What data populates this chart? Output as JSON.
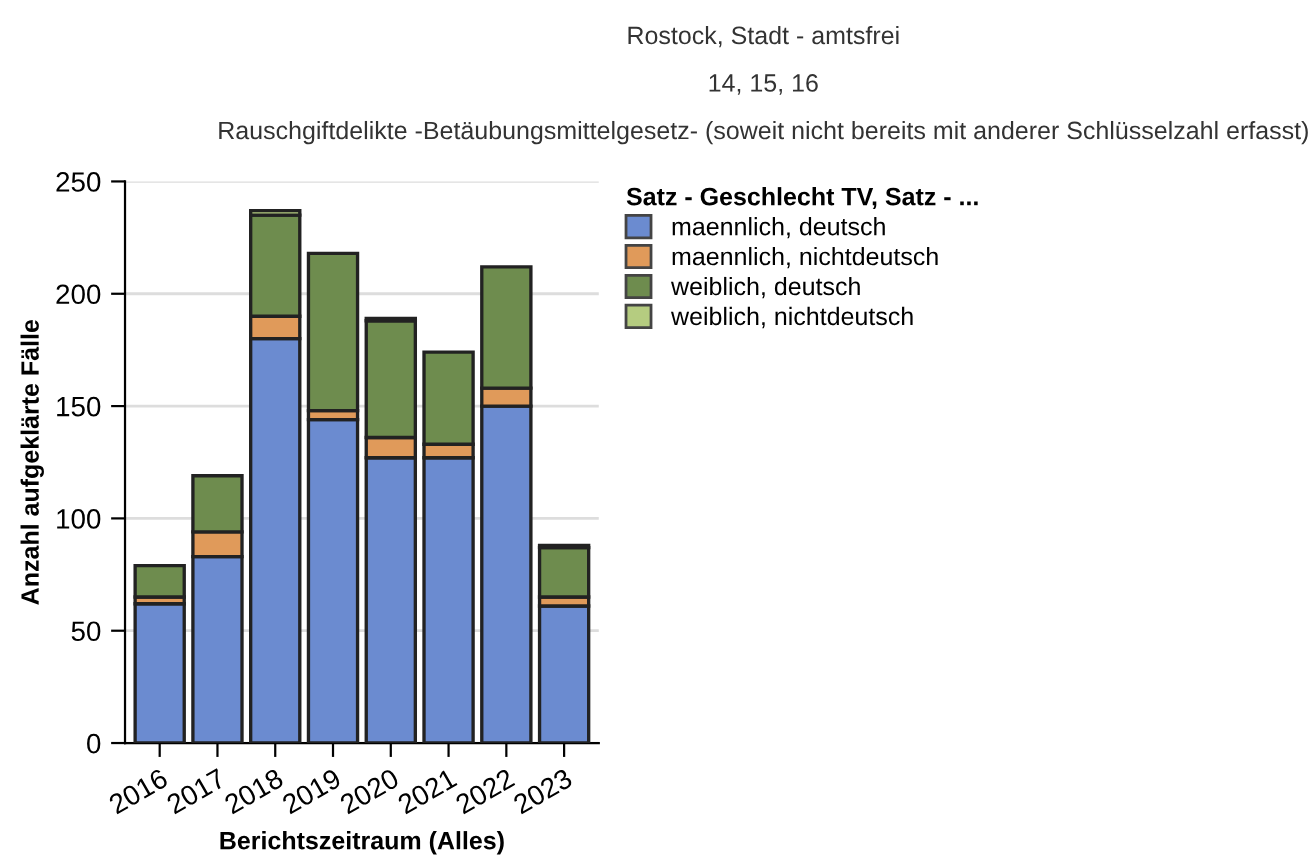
{
  "chart_data": {
    "type": "bar",
    "stacked": true,
    "title": "Rostock, Stadt - amtsfrei",
    "subtitle": "14, 15, 16",
    "annotations": [
      "Rauschgiftdelikte -Betäubungsmittelgesetz- (soweit nicht bereits mit anderer Schlüsselzahl erfasst)"
    ],
    "xlabel": "Berichtszeitraum (Alles)",
    "ylabel": "Anzahl aufgeklärte Fälle",
    "legend_title": "Satz - Geschlecht TV, Satz - ...",
    "legend": "top right",
    "grid": "y",
    "categories": [
      "2016",
      "2017",
      "2018",
      "2019",
      "2020",
      "2021",
      "2022",
      "2023"
    ],
    "ylim": [
      0,
      250
    ],
    "yticks": [
      0,
      50,
      100,
      150,
      200,
      250
    ],
    "series": [
      {
        "name": "maennlich, deutsch",
        "color": "#6b8bd0",
        "values": [
          62,
          83,
          180,
          144,
          127,
          127,
          150,
          61
        ]
      },
      {
        "name": "maennlich, nichtdeutsch",
        "color": "#e09a5a",
        "values": [
          3,
          11,
          10,
          4,
          9,
          6,
          8,
          4
        ]
      },
      {
        "name": "weiblich, deutsch",
        "color": "#6e8c4e",
        "values": [
          14,
          25,
          45,
          70,
          52,
          41,
          54,
          22
        ]
      },
      {
        "name": "weiblich, nichtdeutsch",
        "color": "#b5cc80",
        "values": [
          null,
          null,
          2,
          null,
          1,
          null,
          null,
          1
        ]
      }
    ]
  }
}
